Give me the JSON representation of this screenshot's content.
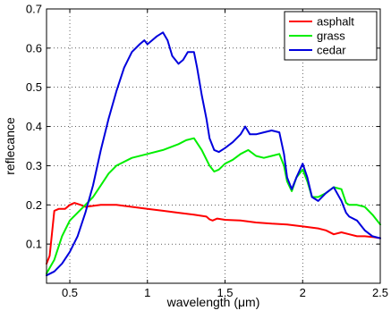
{
  "chart_data": {
    "type": "line",
    "xlabel": "wavelength (μm)",
    "ylabel": "reflecance",
    "xlim": [
      0.35,
      2.5
    ],
    "ylim": [
      0,
      0.7
    ],
    "x_ticks": [
      0.5,
      1,
      1.5,
      2,
      2.5
    ],
    "y_ticks": [
      0.1,
      0.2,
      0.3,
      0.4,
      0.5,
      0.6,
      0.7
    ],
    "grid": true,
    "legend_position": "top-right",
    "series": [
      {
        "name": "asphalt",
        "color": "#ff0000",
        "x": [
          0.35,
          0.37,
          0.4,
          0.43,
          0.47,
          0.5,
          0.53,
          0.57,
          0.6,
          0.7,
          0.8,
          0.9,
          1.0,
          1.1,
          1.2,
          1.3,
          1.38,
          1.4,
          1.42,
          1.45,
          1.5,
          1.6,
          1.7,
          1.8,
          1.9,
          2.0,
          2.1,
          2.15,
          2.2,
          2.25,
          2.3,
          2.35,
          2.4,
          2.45,
          2.5
        ],
        "y": [
          0.05,
          0.07,
          0.185,
          0.19,
          0.19,
          0.2,
          0.205,
          0.2,
          0.195,
          0.2,
          0.2,
          0.195,
          0.19,
          0.185,
          0.18,
          0.175,
          0.17,
          0.163,
          0.16,
          0.165,
          0.162,
          0.16,
          0.155,
          0.152,
          0.15,
          0.145,
          0.14,
          0.135,
          0.125,
          0.13,
          0.125,
          0.12,
          0.12,
          0.118,
          0.115
        ]
      },
      {
        "name": "grass",
        "color": "#00ee00",
        "x": [
          0.35,
          0.4,
          0.45,
          0.5,
          0.55,
          0.6,
          0.65,
          0.7,
          0.75,
          0.8,
          0.9,
          1.0,
          1.1,
          1.2,
          1.25,
          1.3,
          1.35,
          1.4,
          1.43,
          1.46,
          1.5,
          1.55,
          1.6,
          1.65,
          1.7,
          1.75,
          1.8,
          1.85,
          1.88,
          1.9,
          1.93,
          1.96,
          2.0,
          2.03,
          2.06,
          2.1,
          2.15,
          2.2,
          2.25,
          2.28,
          2.3,
          2.35,
          2.4,
          2.45,
          2.5
        ],
        "y": [
          0.025,
          0.06,
          0.12,
          0.16,
          0.18,
          0.2,
          0.22,
          0.25,
          0.28,
          0.3,
          0.32,
          0.33,
          0.34,
          0.355,
          0.365,
          0.37,
          0.34,
          0.3,
          0.285,
          0.29,
          0.305,
          0.315,
          0.33,
          0.34,
          0.325,
          0.32,
          0.325,
          0.33,
          0.3,
          0.26,
          0.235,
          0.27,
          0.29,
          0.26,
          0.22,
          0.22,
          0.23,
          0.245,
          0.24,
          0.205,
          0.2,
          0.2,
          0.195,
          0.175,
          0.15
        ]
      },
      {
        "name": "cedar",
        "color": "#0000dd",
        "x": [
          0.35,
          0.4,
          0.45,
          0.5,
          0.55,
          0.6,
          0.65,
          0.7,
          0.75,
          0.8,
          0.85,
          0.9,
          0.95,
          0.98,
          1.0,
          1.03,
          1.06,
          1.1,
          1.13,
          1.16,
          1.2,
          1.23,
          1.26,
          1.3,
          1.32,
          1.35,
          1.38,
          1.4,
          1.43,
          1.46,
          1.5,
          1.55,
          1.6,
          1.63,
          1.66,
          1.7,
          1.75,
          1.8,
          1.85,
          1.88,
          1.9,
          1.93,
          1.96,
          2.0,
          2.03,
          2.06,
          2.1,
          2.15,
          2.2,
          2.25,
          2.28,
          2.3,
          2.35,
          2.4,
          2.45,
          2.5
        ],
        "y": [
          0.02,
          0.03,
          0.05,
          0.08,
          0.12,
          0.18,
          0.25,
          0.34,
          0.42,
          0.49,
          0.55,
          0.59,
          0.61,
          0.62,
          0.61,
          0.62,
          0.63,
          0.64,
          0.62,
          0.58,
          0.56,
          0.57,
          0.59,
          0.59,
          0.55,
          0.48,
          0.42,
          0.37,
          0.34,
          0.335,
          0.345,
          0.36,
          0.38,
          0.4,
          0.38,
          0.38,
          0.385,
          0.39,
          0.385,
          0.33,
          0.27,
          0.24,
          0.27,
          0.305,
          0.27,
          0.22,
          0.21,
          0.23,
          0.245,
          0.21,
          0.18,
          0.17,
          0.16,
          0.135,
          0.12,
          0.115
        ]
      }
    ]
  }
}
